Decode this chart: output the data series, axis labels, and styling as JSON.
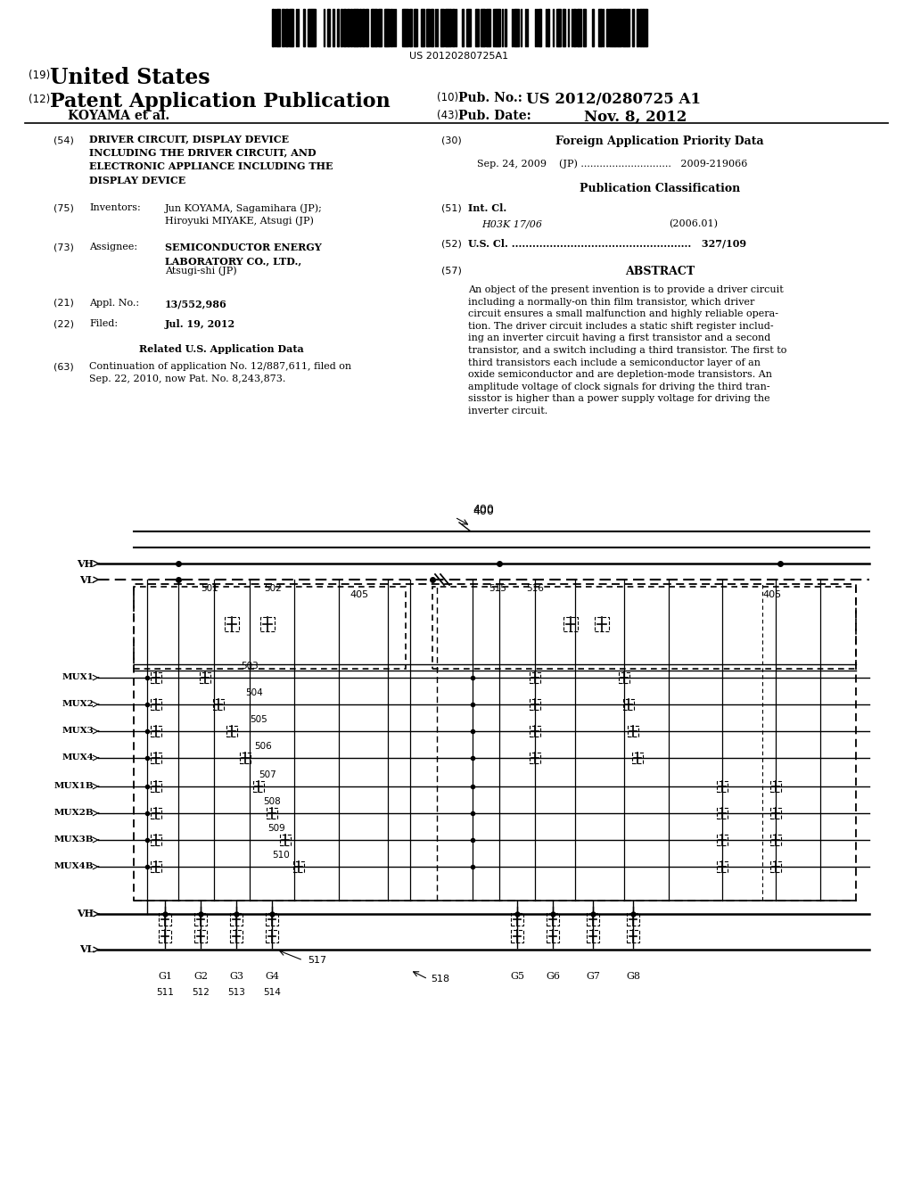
{
  "bg_color": "#ffffff",
  "barcode_text": "US 20120280725A1",
  "header": {
    "n19": "(19)",
    "united_states": "United States",
    "n12": "(12)",
    "patent_app_pub": "Patent Application Publication",
    "koyama": "KOYAMA et al.",
    "n10": "(10)",
    "pub_no_label": "Pub. No.:",
    "pub_no_value": "US 2012/0280725 A1",
    "n43": "(43)",
    "pub_date_label": "Pub. Date:",
    "pub_date_value": "Nov. 8, 2012"
  },
  "title54": "DRIVER CIRCUIT, DISPLAY DEVICE\nINCLUDING THE DRIVER CIRCUIT, AND\nELECTRONIC APPLIANCE INCLUDING THE\nDISPLAY DEVICE",
  "inventors_label": "Inventors:",
  "inventors_value": "Jun KOYAMA, Sagamihara (JP);\nHiroyuki MIYAKE, Atsugi (JP)",
  "assignee_label": "Assignee:",
  "assignee_bold": "SEMICONDUCTOR ENERGY\nLABORATORY CO., LTD.,",
  "assignee_extra": "Atsugi-shi (JP)",
  "appl_no_label": "Appl. No.:",
  "appl_no_value": "13/552,986",
  "filed_label": "Filed:",
  "filed_value": "Jul. 19, 2012",
  "related_header": "Related U.S. Application Data",
  "continuation": "Continuation of application No. 12/887,611, filed on\nSep. 22, 2010, now Pat. No. 8,243,873.",
  "foreign_header": "Foreign Application Priority Data",
  "foreign_entry": "Sep. 24, 2009    (JP) .............................   2009-219066",
  "pub_class_header": "Publication Classification",
  "int_cl_label": "Int. Cl.",
  "int_cl_value": "H03K 17/06",
  "int_cl_year": "(2006.01)",
  "us_cl_line": "U.S. Cl. ....................................................   327/109",
  "abstract_header": "ABSTRACT",
  "abstract_text": "An object of the present invention is to provide a driver circuit\nincluding a normally-on thin film transistor, which driver\ncircuit ensures a small malfunction and highly reliable opera-\ntion. The driver circuit includes a static shift register includ-\ning an inverter circuit having a first transistor and a second\ntransistor, and a switch including a third transistor. The first to\nthird transistors each include a semiconductor layer of an\noxide semiconductor and are depletion-mode transistors. An\namplitude voltage of clock signals for driving the third tran-\nsisstor is higher than a power supply voltage for driving the\ninverter circuit.",
  "mux_labels": [
    "MUX1",
    "MUX2",
    "MUX3",
    "MUX4",
    "MUX1B",
    "MUX2B",
    "MUX3B",
    "MUX4B"
  ],
  "mux_numbers": [
    "503",
    "504",
    "505",
    "506",
    "507",
    "508",
    "509",
    "510"
  ],
  "gate_labels_left": [
    "G1",
    "G2",
    "G3",
    "G4"
  ],
  "gate_nums_left": [
    "511",
    "512",
    "513",
    "514"
  ],
  "gate_labels_right": [
    "G5",
    "G6",
    "G7",
    "G8"
  ]
}
